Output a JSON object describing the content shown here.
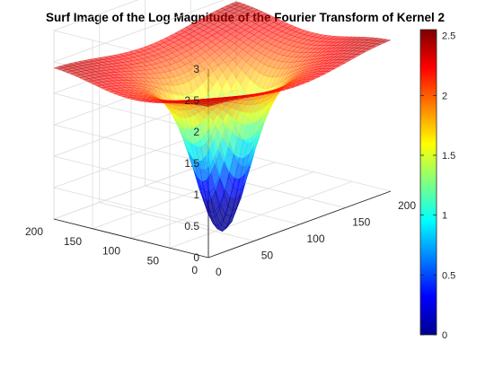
{
  "chart_data": {
    "type": "surface",
    "title": "Surf Image of the Log Magnitude of the Fourier Transform of Kernel 2",
    "xlabel": "",
    "ylabel": "",
    "zlabel": "",
    "x_range": [
      0,
      200
    ],
    "y_range": [
      0,
      200
    ],
    "zlim": [
      0,
      3
    ],
    "x_ticks": [
      "0",
      "50",
      "100",
      "150",
      "200"
    ],
    "y_ticks": [
      "0",
      "50",
      "100",
      "150",
      "200"
    ],
    "z_ticks": [
      "0",
      "0.5",
      "1",
      "1.5",
      "2",
      "2.5",
      "3"
    ],
    "grid": true,
    "colormap": "jet",
    "face_alpha": 0.5,
    "surface_shape": "log magnitude of a low-pass kernel spectrum; ~2.2 plateau at edges, dip to ~0 at center (100,100)",
    "sample_points": [
      {
        "x": 0,
        "y": 0,
        "z": 2.2
      },
      {
        "x": 200,
        "y": 0,
        "z": 2.2
      },
      {
        "x": 0,
        "y": 200,
        "z": 2.2
      },
      {
        "x": 200,
        "y": 200,
        "z": 2.2
      },
      {
        "x": 100,
        "y": 100,
        "z": 0.0
      }
    ],
    "colorbar": {
      "range": [
        0,
        2.55
      ],
      "ticks": [
        "0",
        "0.5",
        "1",
        "1.5",
        "2",
        "2.5"
      ],
      "colors": [
        "#00008f",
        "#0000ff",
        "#00ffff",
        "#ffff00",
        "#ff0000",
        "#800000"
      ]
    }
  }
}
